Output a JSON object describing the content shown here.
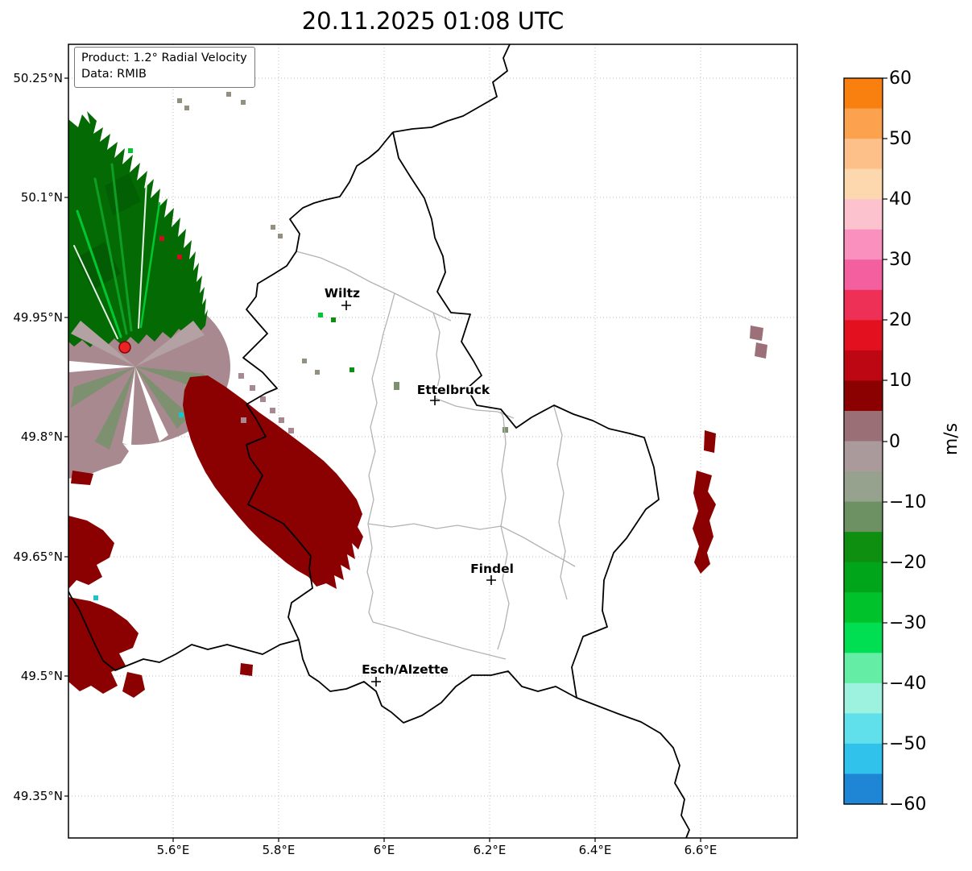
{
  "figure": {
    "title": "20.11.2025 01:08 UTC"
  },
  "info_box": {
    "product": "Product: 1.2° Radial Velocity",
    "source": "Data: RMIB"
  },
  "axes": {
    "lat_ticks": [
      {
        "label": "50.25°N"
      },
      {
        "label": "50.1°N"
      },
      {
        "label": "49.95°N"
      },
      {
        "label": "49.8°N"
      },
      {
        "label": "49.65°N"
      },
      {
        "label": "49.5°N"
      },
      {
        "label": "49.35°N"
      }
    ],
    "lon_ticks": [
      {
        "label": "5.6°E"
      },
      {
        "label": "5.8°E"
      },
      {
        "label": "6°E"
      },
      {
        "label": "6.2°E"
      },
      {
        "label": "6.4°E"
      },
      {
        "label": "6.6°E"
      }
    ]
  },
  "cities": [
    {
      "name": "Wiltz"
    },
    {
      "name": "Ettelbruck"
    },
    {
      "name": "Findel"
    },
    {
      "name": "Esch/Alzette"
    }
  ],
  "colorbar": {
    "unit": "m/s",
    "range": [
      -60,
      60
    ],
    "ticks": [
      {
        "label": "60"
      },
      {
        "label": "50"
      },
      {
        "label": "40"
      },
      {
        "label": "30"
      },
      {
        "label": "20"
      },
      {
        "label": "10"
      },
      {
        "label": "0"
      },
      {
        "label": "−10"
      },
      {
        "label": "−20"
      },
      {
        "label": "−30"
      },
      {
        "label": "−40"
      },
      {
        "label": "−50"
      },
      {
        "label": "−60"
      }
    ],
    "segment_colors_top_to_bottom": [
      "#f97f0e",
      "#fca24e",
      "#fdc088",
      "#fdd8ae",
      "#fcc3cf",
      "#f990bd",
      "#f45fa0",
      "#ee3056",
      "#e3101f",
      "#bd0713",
      "#8b0000",
      "#9a7076",
      "#ab9a9c",
      "#96a28e",
      "#6d9162",
      "#0f8f0f",
      "#00a51a",
      "#00c22b",
      "#00de52",
      "#63eda5",
      "#9cf2df",
      "#5fe0ea",
      "#30c2ea",
      "#1f86d6"
    ]
  },
  "palette": {
    "away_dark_red": "#8b0000",
    "away_red": "#c8101e",
    "away_gray_red": "#9b7078",
    "toward_dark_green": "#046b04",
    "toward_green": "#0d9e24",
    "toward_bright_green": "#00c832",
    "near_zero_mauve": "#a8898f",
    "near_zero_mauve_light": "#b4a1a3",
    "near_zero_gray_green": "#7d9070",
    "aliased_teal": "#1cc3cf",
    "clutter_gray": "#93907f",
    "radar_marker": "#ee2222",
    "border_black": "#000000",
    "border_gray": "#b3b3b3",
    "grid_gray": "#bdbdbd"
  }
}
